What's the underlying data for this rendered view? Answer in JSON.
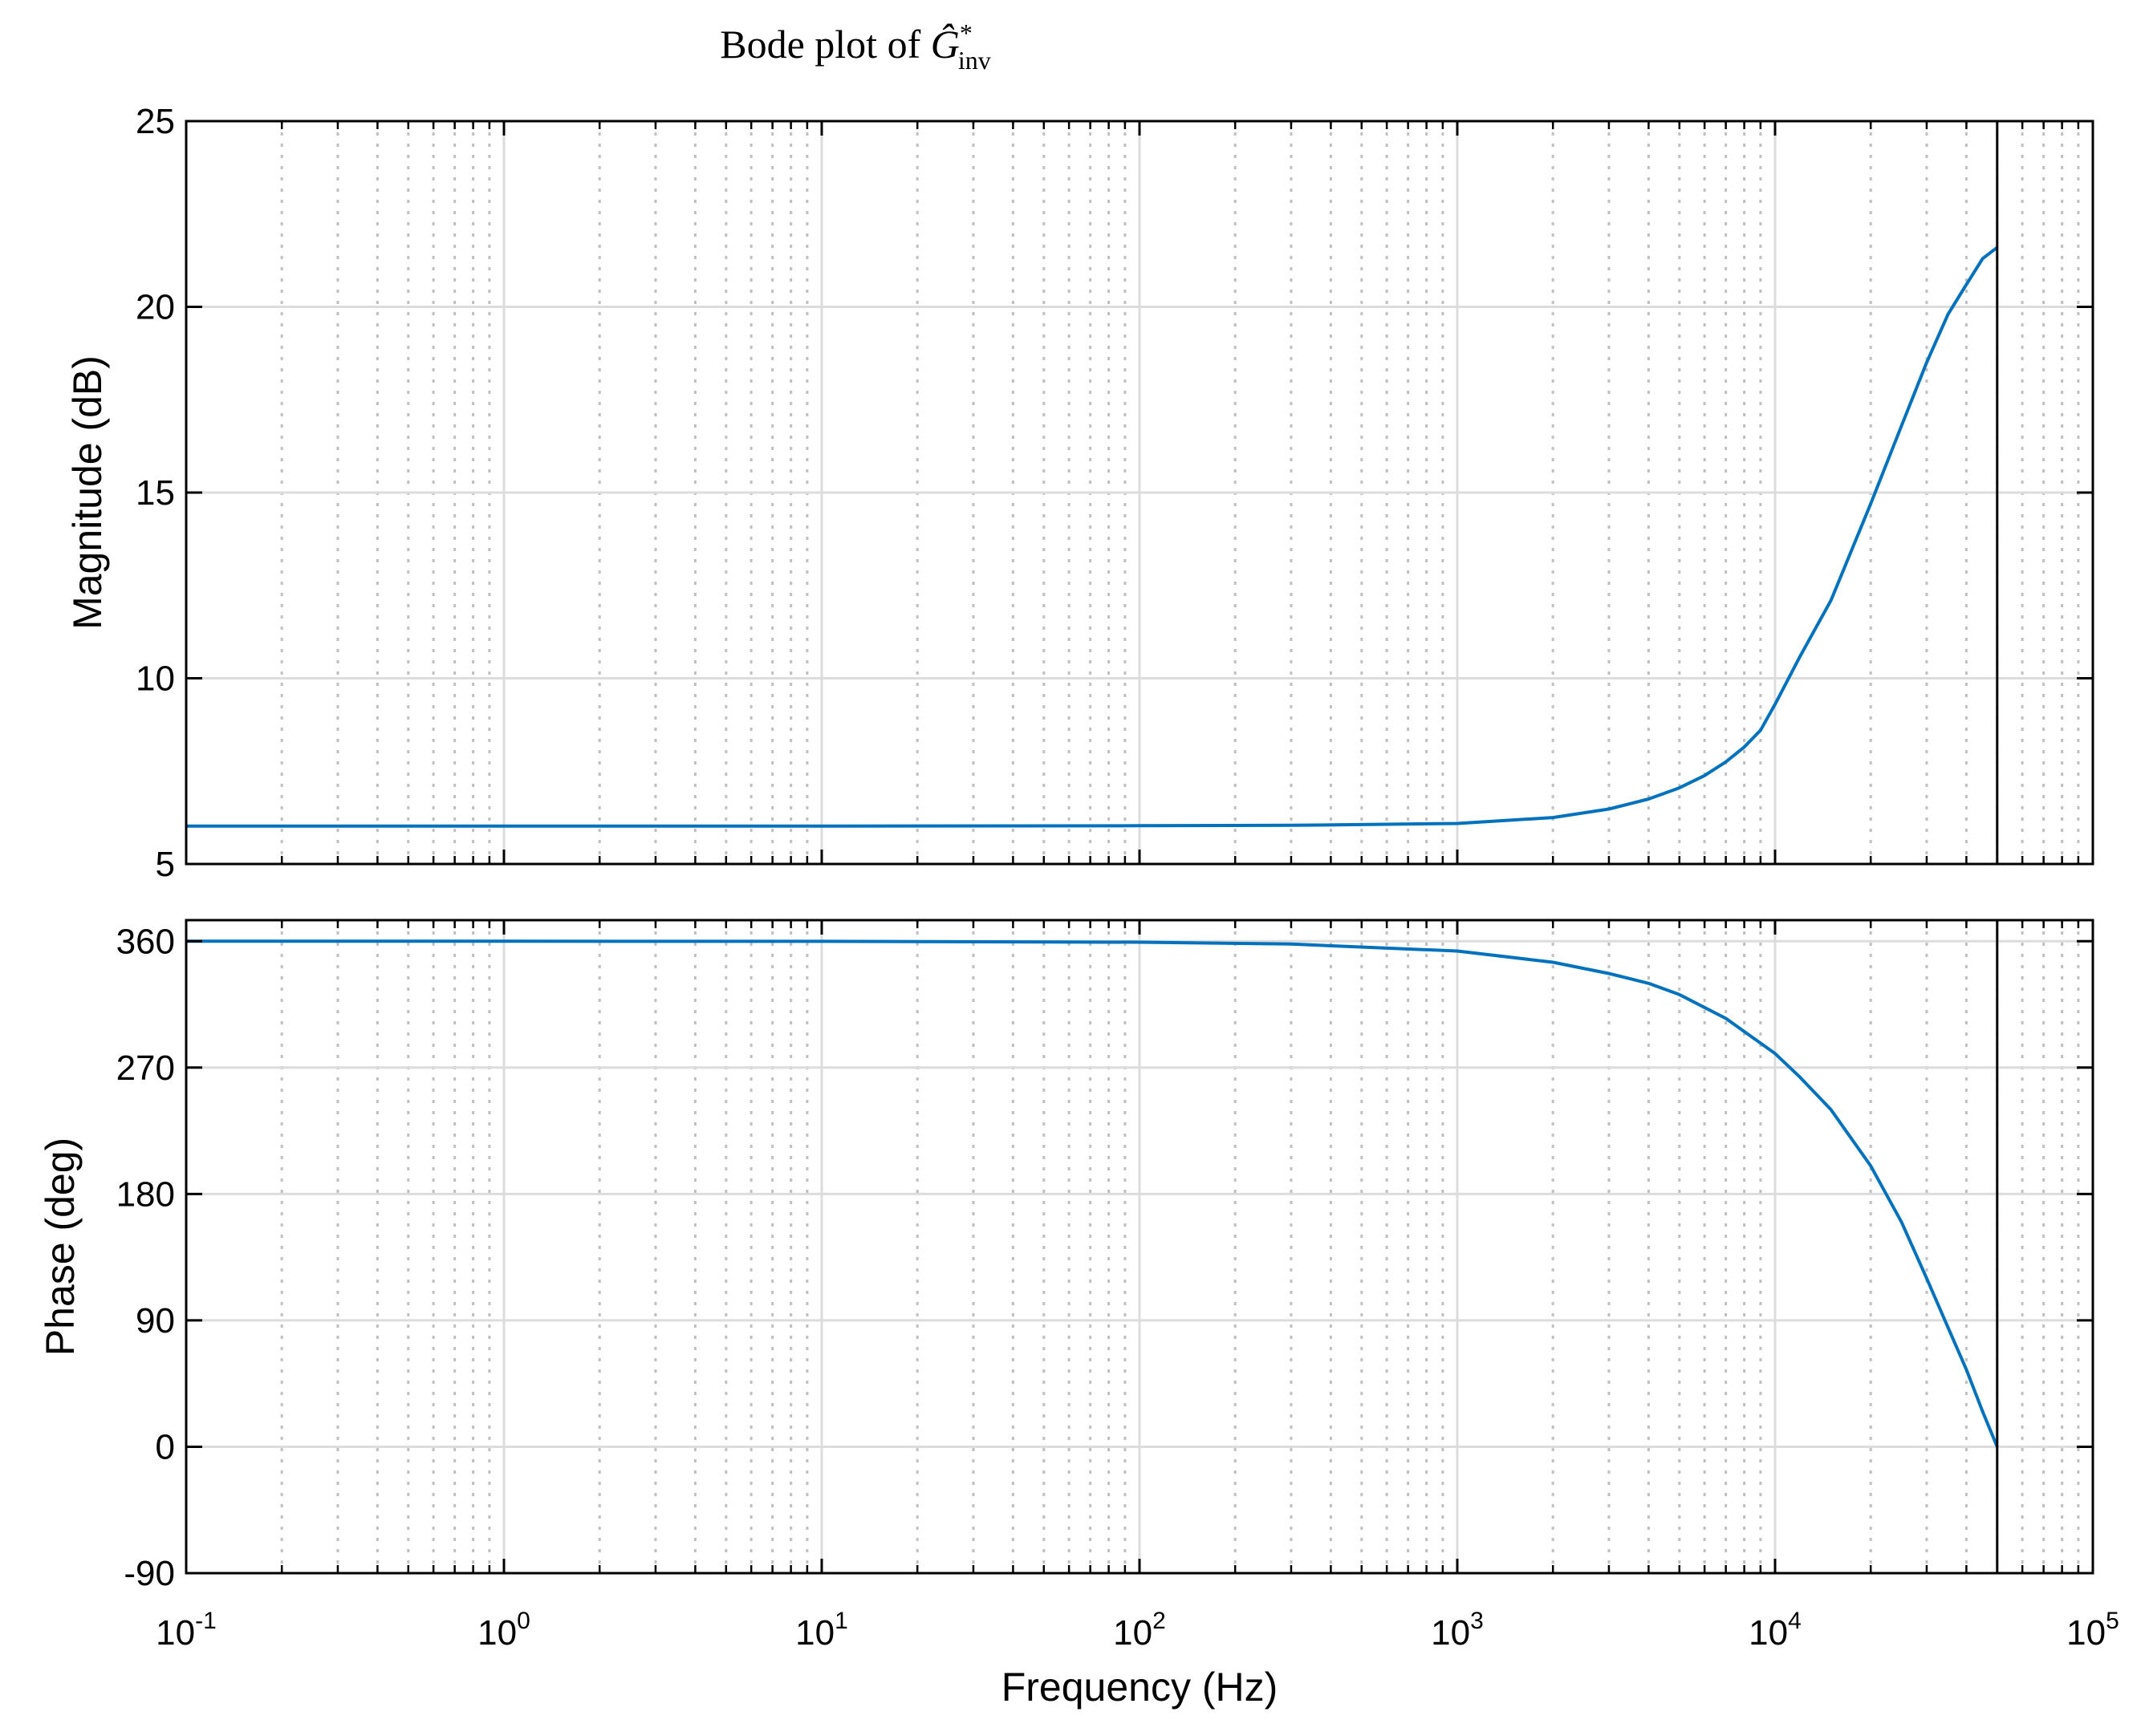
{
  "chart_data": {
    "type": "line",
    "title": "Bode plot of Ĝ*inv",
    "title_main": "Bode plot of ",
    "title_symbol": "Ĝ",
    "title_sup": "*",
    "title_sub": "inv",
    "xlabel": "Frequency  (Hz)",
    "xscale": "log",
    "xlim": [
      0.1,
      100000
    ],
    "x_ticks": [
      {
        "base": "10",
        "exp": "-1"
      },
      {
        "base": "10",
        "exp": "0"
      },
      {
        "base": "10",
        "exp": "1"
      },
      {
        "base": "10",
        "exp": "2"
      },
      {
        "base": "10",
        "exp": "3"
      },
      {
        "base": "10",
        "exp": "4"
      },
      {
        "base": "10",
        "exp": "5"
      }
    ],
    "grid": true,
    "nyquist_line_hz": 50000,
    "color": "#0072BD",
    "panels": [
      {
        "name": "magnitude",
        "ylabel": "Magnitude (dB)",
        "ylim": [
          5,
          25
        ],
        "y_ticks": [
          "5",
          "10",
          "15",
          "20",
          "25"
        ],
        "series": [
          {
            "x": [
              0.1,
              1,
              10,
              100,
              300,
              1000,
              2000,
              3000,
              4000,
              5000,
              6000,
              7000,
              8000,
              9000,
              10000,
              12000,
              15000,
              20000,
              25000,
              30000,
              35000,
              40000,
              45000,
              50000
            ],
            "values": [
              6.02,
              6.02,
              6.02,
              6.03,
              6.04,
              6.09,
              6.25,
              6.48,
              6.75,
              7.05,
              7.38,
              7.75,
              8.15,
              8.6,
              9.3,
              10.6,
              12.1,
              14.7,
              16.8,
              18.5,
              19.8,
              20.6,
              21.3,
              21.6
            ]
          }
        ]
      },
      {
        "name": "phase",
        "ylabel": "Phase (deg)",
        "ylim": [
          -90,
          375
        ],
        "y_ticks": [
          "-90",
          "0",
          "90",
          "180",
          "270",
          "360"
        ],
        "series": [
          {
            "x": [
              0.1,
              1,
              10,
              100,
              300,
              1000,
              2000,
              3000,
              4000,
              5000,
              7000,
              10000,
              12000,
              15000,
              20000,
              25000,
              30000,
              35000,
              40000,
              45000,
              50000
            ],
            "values": [
              360,
              360,
              359.9,
              359.3,
              358,
              353,
              345,
              337,
              330,
              322,
              305,
              280,
              263,
              240,
              200,
              160,
              120,
              85,
              55,
              25,
              0
            ]
          }
        ]
      }
    ]
  }
}
